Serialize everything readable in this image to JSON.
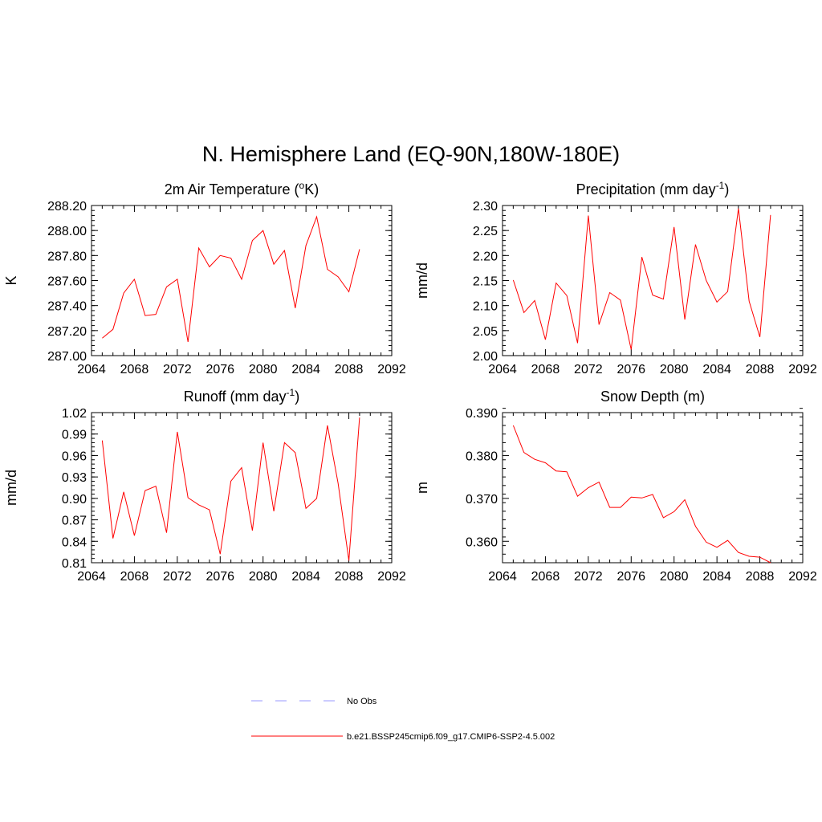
{
  "figure": {
    "title": "N. Hemisphere Land (EQ-90N,180W-180E)"
  },
  "legend": [
    {
      "label": "No Obs",
      "color": "#9999ff",
      "style": "dashed"
    },
    {
      "label": "b.e21.BSSP245cmip6.f09_g17.CMIP6-SSP2-4.5.002",
      "color": "#ff0000",
      "style": "solid"
    }
  ],
  "chart_data": [
    {
      "type": "line",
      "title_main": "2m Air Temperature (",
      "title_sup": "o",
      "title_end": "K)",
      "ylabel": "K",
      "xlim": [
        2064,
        2092
      ],
      "ylim": [
        287.0,
        288.2
      ],
      "xticks": [
        "2064",
        "2068",
        "2072",
        "2076",
        "2080",
        "2084",
        "2088",
        "2092"
      ],
      "yticks": [
        "287.00",
        "287.20",
        "287.40",
        "287.60",
        "287.80",
        "288.00",
        "288.20"
      ],
      "color": "#ff0000",
      "x": [
        2065,
        2066,
        2067,
        2068,
        2069,
        2070,
        2071,
        2072,
        2073,
        2074,
        2075,
        2076,
        2077,
        2078,
        2079,
        2080,
        2081,
        2082,
        2083,
        2084,
        2085,
        2086,
        2087,
        2088,
        2089
      ],
      "y": [
        287.14,
        287.21,
        287.5,
        287.61,
        287.32,
        287.33,
        287.55,
        287.61,
        287.11,
        287.86,
        287.71,
        287.8,
        287.78,
        287.61,
        287.92,
        288.0,
        287.73,
        287.84,
        287.38,
        287.88,
        288.11,
        287.69,
        287.63,
        287.51,
        287.85
      ]
    },
    {
      "type": "line",
      "title_main": "Precipitation (mm day",
      "title_sup": "-1",
      "title_end": ")",
      "ylabel": "mm/d",
      "xlim": [
        2064,
        2092
      ],
      "ylim": [
        2.0,
        2.3
      ],
      "xticks": [
        "2064",
        "2068",
        "2072",
        "2076",
        "2080",
        "2084",
        "2088",
        "2092"
      ],
      "yticks": [
        "2.00",
        "2.05",
        "2.10",
        "2.15",
        "2.20",
        "2.25",
        "2.30"
      ],
      "color": "#ff0000",
      "x": [
        2065,
        2066,
        2067,
        2068,
        2069,
        2070,
        2071,
        2072,
        2073,
        2074,
        2075,
        2076,
        2077,
        2078,
        2079,
        2080,
        2081,
        2082,
        2083,
        2084,
        2085,
        2086,
        2087,
        2088,
        2089
      ],
      "y": [
        2.151,
        2.086,
        2.11,
        2.032,
        2.145,
        2.12,
        2.025,
        2.28,
        2.062,
        2.126,
        2.111,
        2.012,
        2.197,
        2.121,
        2.113,
        2.257,
        2.072,
        2.222,
        2.15,
        2.107,
        2.128,
        2.294,
        2.109,
        2.037,
        2.281
      ]
    },
    {
      "type": "line",
      "title_main": "Runoff (mm day",
      "title_sup": "-1",
      "title_end": ")",
      "ylabel": "mm/d",
      "xlim": [
        2064,
        2092
      ],
      "ylim": [
        0.81,
        1.02
      ],
      "xticks": [
        "2064",
        "2068",
        "2072",
        "2076",
        "2080",
        "2084",
        "2088",
        "2092"
      ],
      "yticks": [
        "0.81",
        "0.84",
        "0.87",
        "0.90",
        "0.93",
        "0.96",
        "0.99",
        "1.02"
      ],
      "color": "#ff0000",
      "x": [
        2065,
        2066,
        2067,
        2068,
        2069,
        2070,
        2071,
        2072,
        2073,
        2074,
        2075,
        2076,
        2077,
        2078,
        2079,
        2080,
        2081,
        2082,
        2083,
        2084,
        2085,
        2086,
        2087,
        2088,
        2089
      ],
      "y": [
        0.981,
        0.844,
        0.909,
        0.848,
        0.911,
        0.917,
        0.852,
        0.993,
        0.901,
        0.891,
        0.884,
        0.822,
        0.924,
        0.943,
        0.855,
        0.978,
        0.882,
        0.978,
        0.964,
        0.886,
        0.9,
        1.002,
        0.921,
        0.813,
        1.013
      ]
    },
    {
      "type": "line",
      "title_main": "Snow Depth (m)",
      "title_sup": "",
      "title_end": "",
      "ylabel": "m",
      "xlim": [
        2064,
        2092
      ],
      "ylim": [
        0.355,
        0.39
      ],
      "xticks": [
        "2064",
        "2068",
        "2072",
        "2076",
        "2080",
        "2084",
        "2088",
        "2092"
      ],
      "yticks": [
        "0.360",
        "0.370",
        "0.380",
        "0.390"
      ],
      "ytick_values": [
        0.36,
        0.37,
        0.38,
        0.39
      ],
      "color": "#ff0000",
      "x": [
        2065,
        2066,
        2067,
        2068,
        2069,
        2070,
        2071,
        2072,
        2073,
        2074,
        2075,
        2076,
        2077,
        2078,
        2079,
        2080,
        2081,
        2082,
        2083,
        2084,
        2085,
        2086,
        2087,
        2088,
        2089
      ],
      "y": [
        0.387,
        0.3807,
        0.3791,
        0.3783,
        0.3764,
        0.3762,
        0.3705,
        0.3725,
        0.3738,
        0.3679,
        0.3679,
        0.3703,
        0.3701,
        0.3709,
        0.3655,
        0.3669,
        0.3697,
        0.3635,
        0.3598,
        0.3586,
        0.3602,
        0.3574,
        0.3565,
        0.3563,
        0.355
      ]
    }
  ]
}
